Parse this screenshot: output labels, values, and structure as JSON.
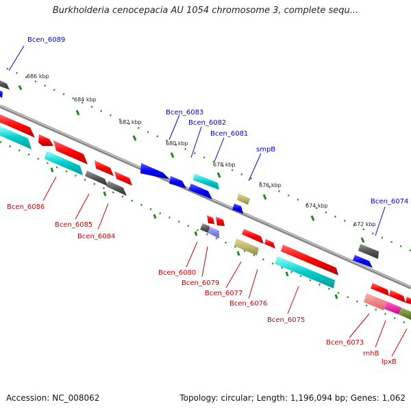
{
  "header": {
    "title": "Burkholderia cenocepacia AU 1054 chromosome 3, complete sequ..."
  },
  "footer": {
    "accession": "Accession: NC_008062",
    "summary": "Topology: circular; Length: 1,196,094 bp; Genes: 1,062"
  },
  "ruler": {
    "ticks": [
      "686 kbp",
      "684 kbp",
      "682 kbp",
      "680 kbp",
      "678 kbp",
      "676 kbp",
      "674 kbp",
      "672 kbp"
    ]
  },
  "genes": {
    "top_labels": [
      "Bcen_6089",
      "Bcen_6083",
      "Bcen_6082",
      "Bcen_6081",
      "smpB",
      "Bcen_6074"
    ],
    "bottom_labels": [
      "Bcen_6086",
      "Bcen_6085",
      "Bcen_6084",
      "Bcen_6080",
      "Bcen_6079",
      "Bcen_6077",
      "Bcen_6076",
      "Bcen_6075",
      "Bcen_6073",
      "rnhB",
      "lpxB"
    ]
  },
  "colors": {
    "cds_forward": "#0000ff",
    "cds_reverse": "#ff0000",
    "gray_feature": "#555555",
    "cyan_feature": "#00cccc",
    "olive_feature": "#bdb76b",
    "pink_feature": "#f08080",
    "magenta_feature": "#ff00aa",
    "green_feature": "#6b8e23",
    "backbone": "#777777",
    "tick_green": "#1a8a1a",
    "label_blue": "#0000cc",
    "label_red": "#cc0000"
  }
}
